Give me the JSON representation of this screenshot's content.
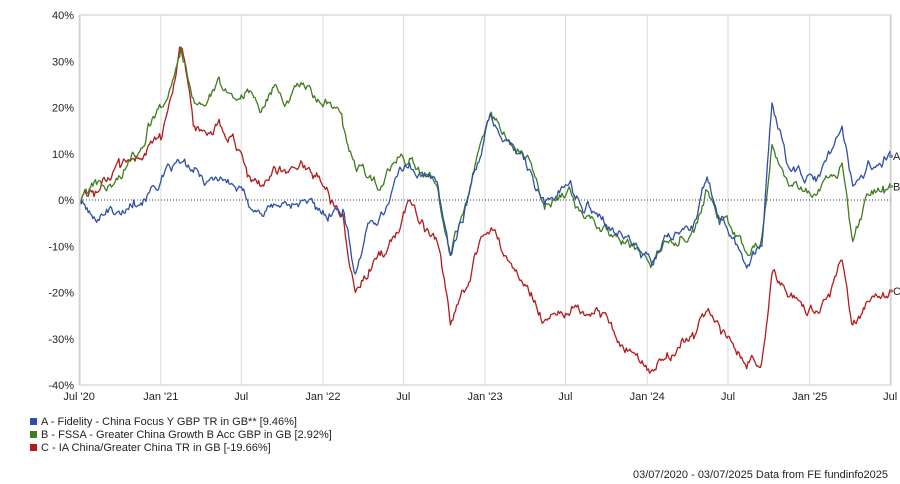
{
  "chart_data": {
    "type": "line",
    "ylim": [
      -40,
      40
    ],
    "y_ticks": [
      40,
      30,
      20,
      10,
      0,
      -10,
      -20,
      -30,
      -40
    ],
    "y_tick_labels": [
      "40%",
      "30%",
      "20%",
      "10%",
      "0%",
      "-10%",
      "-20%",
      "-30%",
      "-40%"
    ],
    "x_range": [
      "2020-07-03",
      "2025-07-03"
    ],
    "x_ticks": [
      "2020-07",
      "2021-01",
      "2021-07",
      "2022-01",
      "2022-07",
      "2023-01",
      "2023-07",
      "2024-01",
      "2024-07",
      "2025-01",
      "2025-07"
    ],
    "x_tick_labels": [
      "Jul '20",
      "Jan '21",
      "Jul",
      "Jan '22",
      "Jul",
      "Jan '23",
      "Jul",
      "Jan '24",
      "Jul",
      "Jan '25",
      "Jul"
    ],
    "grid": "vertical",
    "zero_line": "dotted",
    "series": [
      {
        "id": "A",
        "name": "A - Fidelity - China Focus Y GBP TR in GB** [9.46%]",
        "color": "#2e4fa6",
        "points": [
          [
            "2020-07-03",
            0
          ],
          [
            "2020-08-01",
            -4
          ],
          [
            "2020-09-01",
            -2
          ],
          [
            "2020-10-01",
            -3
          ],
          [
            "2020-11-01",
            0
          ],
          [
            "2020-12-01",
            1
          ],
          [
            "2021-01-01",
            4
          ],
          [
            "2021-02-15",
            8
          ],
          [
            "2021-03-15",
            6
          ],
          [
            "2021-04-15",
            4
          ],
          [
            "2021-05-15",
            5
          ],
          [
            "2021-06-15",
            3
          ],
          [
            "2021-07-15",
            0
          ],
          [
            "2021-08-15",
            -3
          ],
          [
            "2021-09-15",
            -1
          ],
          [
            "2021-10-15",
            -1
          ],
          [
            "2021-11-15",
            0
          ],
          [
            "2021-12-15",
            -2
          ],
          [
            "2022-01-15",
            -3
          ],
          [
            "2022-02-15",
            -2
          ],
          [
            "2022-03-15",
            -16
          ],
          [
            "2022-04-15",
            -5
          ],
          [
            "2022-05-15",
            -3
          ],
          [
            "2022-06-15",
            5
          ],
          [
            "2022-07-15",
            8
          ],
          [
            "2022-08-15",
            5
          ],
          [
            "2022-09-15",
            4
          ],
          [
            "2022-10-15",
            -12
          ],
          [
            "2022-11-15",
            -3
          ],
          [
            "2022-12-15",
            8
          ],
          [
            "2023-01-15",
            18
          ],
          [
            "2023-02-15",
            13
          ],
          [
            "2023-03-15",
            10
          ],
          [
            "2023-04-15",
            6
          ],
          [
            "2023-05-15",
            -1
          ],
          [
            "2023-06-15",
            2
          ],
          [
            "2023-07-15",
            3
          ],
          [
            "2023-08-15",
            -2
          ],
          [
            "2023-09-15",
            -3
          ],
          [
            "2023-10-15",
            -6
          ],
          [
            "2023-11-15",
            -8
          ],
          [
            "2023-12-15",
            -11
          ],
          [
            "2024-01-15",
            -14
          ],
          [
            "2024-02-15",
            -8
          ],
          [
            "2024-03-15",
            -7
          ],
          [
            "2024-04-15",
            -5
          ],
          [
            "2024-05-15",
            5
          ],
          [
            "2024-06-15",
            -4
          ],
          [
            "2024-07-15",
            -8
          ],
          [
            "2024-08-15",
            -14
          ],
          [
            "2024-09-15",
            -10
          ],
          [
            "2024-10-08",
            21
          ],
          [
            "2024-11-15",
            7
          ],
          [
            "2024-12-15",
            5
          ],
          [
            "2025-01-15",
            4
          ],
          [
            "2025-02-15",
            10
          ],
          [
            "2025-03-15",
            16
          ],
          [
            "2025-04-08",
            3
          ],
          [
            "2025-05-15",
            8
          ],
          [
            "2025-06-15",
            8
          ],
          [
            "2025-07-03",
            9.46
          ]
        ]
      },
      {
        "id": "B",
        "name": "B - FSSA - Greater China Growth B Acc GBP in GB [2.92%]",
        "color": "#3f7d1f",
        "points": [
          [
            "2020-07-03",
            0
          ],
          [
            "2020-08-01",
            3
          ],
          [
            "2020-09-01",
            2
          ],
          [
            "2020-10-01",
            5
          ],
          [
            "2020-11-01",
            10
          ],
          [
            "2020-12-01",
            15
          ],
          [
            "2021-01-01",
            20
          ],
          [
            "2021-02-15",
            33
          ],
          [
            "2021-03-15",
            22
          ],
          [
            "2021-04-15",
            21
          ],
          [
            "2021-05-15",
            25
          ],
          [
            "2021-06-15",
            22
          ],
          [
            "2021-07-15",
            24
          ],
          [
            "2021-08-15",
            19
          ],
          [
            "2021-09-15",
            25
          ],
          [
            "2021-10-15",
            21
          ],
          [
            "2021-11-15",
            25
          ],
          [
            "2021-12-15",
            22
          ],
          [
            "2022-01-15",
            21
          ],
          [
            "2022-02-15",
            16
          ],
          [
            "2022-03-15",
            7
          ],
          [
            "2022-04-15",
            5
          ],
          [
            "2022-05-15",
            3
          ],
          [
            "2022-06-15",
            8
          ],
          [
            "2022-07-15",
            9
          ],
          [
            "2022-08-15",
            5
          ],
          [
            "2022-09-15",
            3
          ],
          [
            "2022-10-15",
            -12
          ],
          [
            "2022-11-15",
            -2
          ],
          [
            "2022-12-15",
            10
          ],
          [
            "2023-01-15",
            19
          ],
          [
            "2023-02-15",
            14
          ],
          [
            "2023-03-15",
            11
          ],
          [
            "2023-04-15",
            8
          ],
          [
            "2023-05-15",
            -2
          ],
          [
            "2023-06-15",
            0
          ],
          [
            "2023-07-15",
            1
          ],
          [
            "2023-08-15",
            -4
          ],
          [
            "2023-09-15",
            -6
          ],
          [
            "2023-10-15",
            -8
          ],
          [
            "2023-11-15",
            -9
          ],
          [
            "2023-12-15",
            -11
          ],
          [
            "2024-01-15",
            -13
          ],
          [
            "2024-02-15",
            -9
          ],
          [
            "2024-03-15",
            -8
          ],
          [
            "2024-04-15",
            -7
          ],
          [
            "2024-05-15",
            2
          ],
          [
            "2024-06-15",
            -4
          ],
          [
            "2024-07-15",
            -7
          ],
          [
            "2024-08-15",
            -12
          ],
          [
            "2024-09-15",
            -8
          ],
          [
            "2024-10-08",
            12
          ],
          [
            "2024-11-15",
            3
          ],
          [
            "2024-12-15",
            2
          ],
          [
            "2025-01-15",
            1
          ],
          [
            "2025-02-15",
            5
          ],
          [
            "2025-03-15",
            8
          ],
          [
            "2025-04-08",
            -9
          ],
          [
            "2025-05-15",
            1
          ],
          [
            "2025-06-15",
            3
          ],
          [
            "2025-07-03",
            2.92
          ]
        ]
      },
      {
        "id": "C",
        "name": "C - IA China/Greater China TR in GB [-19.66%]",
        "color": "#b31b1b",
        "points": [
          [
            "2020-07-03",
            0
          ],
          [
            "2020-08-01",
            2
          ],
          [
            "2020-09-01",
            4
          ],
          [
            "2020-10-01",
            7
          ],
          [
            "2020-11-01",
            9
          ],
          [
            "2020-12-01",
            11
          ],
          [
            "2021-01-01",
            13
          ],
          [
            "2021-02-15",
            33
          ],
          [
            "2021-03-15",
            16
          ],
          [
            "2021-04-15",
            14
          ],
          [
            "2021-05-15",
            16
          ],
          [
            "2021-06-15",
            13
          ],
          [
            "2021-07-15",
            5
          ],
          [
            "2021-08-15",
            3
          ],
          [
            "2021-09-15",
            7
          ],
          [
            "2021-10-15",
            6
          ],
          [
            "2021-11-15",
            8
          ],
          [
            "2021-12-15",
            5
          ],
          [
            "2022-01-15",
            1
          ],
          [
            "2022-02-15",
            -3
          ],
          [
            "2022-03-15",
            -20
          ],
          [
            "2022-04-15",
            -15
          ],
          [
            "2022-05-15",
            -12
          ],
          [
            "2022-06-15",
            -7
          ],
          [
            "2022-07-15",
            0
          ],
          [
            "2022-08-15",
            -5
          ],
          [
            "2022-09-15",
            -9
          ],
          [
            "2022-10-15",
            -27
          ],
          [
            "2022-11-15",
            -20
          ],
          [
            "2022-12-15",
            -11
          ],
          [
            "2023-01-15",
            -6
          ],
          [
            "2023-02-15",
            -12
          ],
          [
            "2023-03-15",
            -16
          ],
          [
            "2023-04-15",
            -20
          ],
          [
            "2023-05-15",
            -26
          ],
          [
            "2023-06-15",
            -24
          ],
          [
            "2023-07-15",
            -23
          ],
          [
            "2023-08-15",
            -25
          ],
          [
            "2023-09-15",
            -24
          ],
          [
            "2023-10-15",
            -28
          ],
          [
            "2023-11-15",
            -32
          ],
          [
            "2023-12-15",
            -35
          ],
          [
            "2024-01-15",
            -37
          ],
          [
            "2024-02-15",
            -33
          ],
          [
            "2024-03-15",
            -32
          ],
          [
            "2024-04-15",
            -30
          ],
          [
            "2024-05-15",
            -24
          ],
          [
            "2024-06-15",
            -29
          ],
          [
            "2024-07-15",
            -32
          ],
          [
            "2024-08-15",
            -35
          ],
          [
            "2024-09-15",
            -35
          ],
          [
            "2024-10-08",
            -16
          ],
          [
            "2024-11-15",
            -21
          ],
          [
            "2024-12-15",
            -23
          ],
          [
            "2025-01-15",
            -24
          ],
          [
            "2025-02-15",
            -21
          ],
          [
            "2025-03-15",
            -13
          ],
          [
            "2025-04-08",
            -27
          ],
          [
            "2025-05-15",
            -22
          ],
          [
            "2025-06-15",
            -20
          ],
          [
            "2025-07-03",
            -19.66
          ]
        ]
      }
    ],
    "end_labels": [
      "A",
      "B",
      "C"
    ]
  },
  "legend": [
    {
      "label": "A - Fidelity - China Focus Y GBP TR in GB** [9.46%]",
      "color": "#2e4fa6"
    },
    {
      "label": "B - FSSA - Greater China Growth B Acc GBP in GB [2.92%]",
      "color": "#3f7d1f"
    },
    {
      "label": "C - IA China/Greater China TR in GB [-19.66%]",
      "color": "#b31b1b"
    }
  ],
  "footer": "03/07/2020 - 03/07/2025 Data from FE fundinfo2025"
}
